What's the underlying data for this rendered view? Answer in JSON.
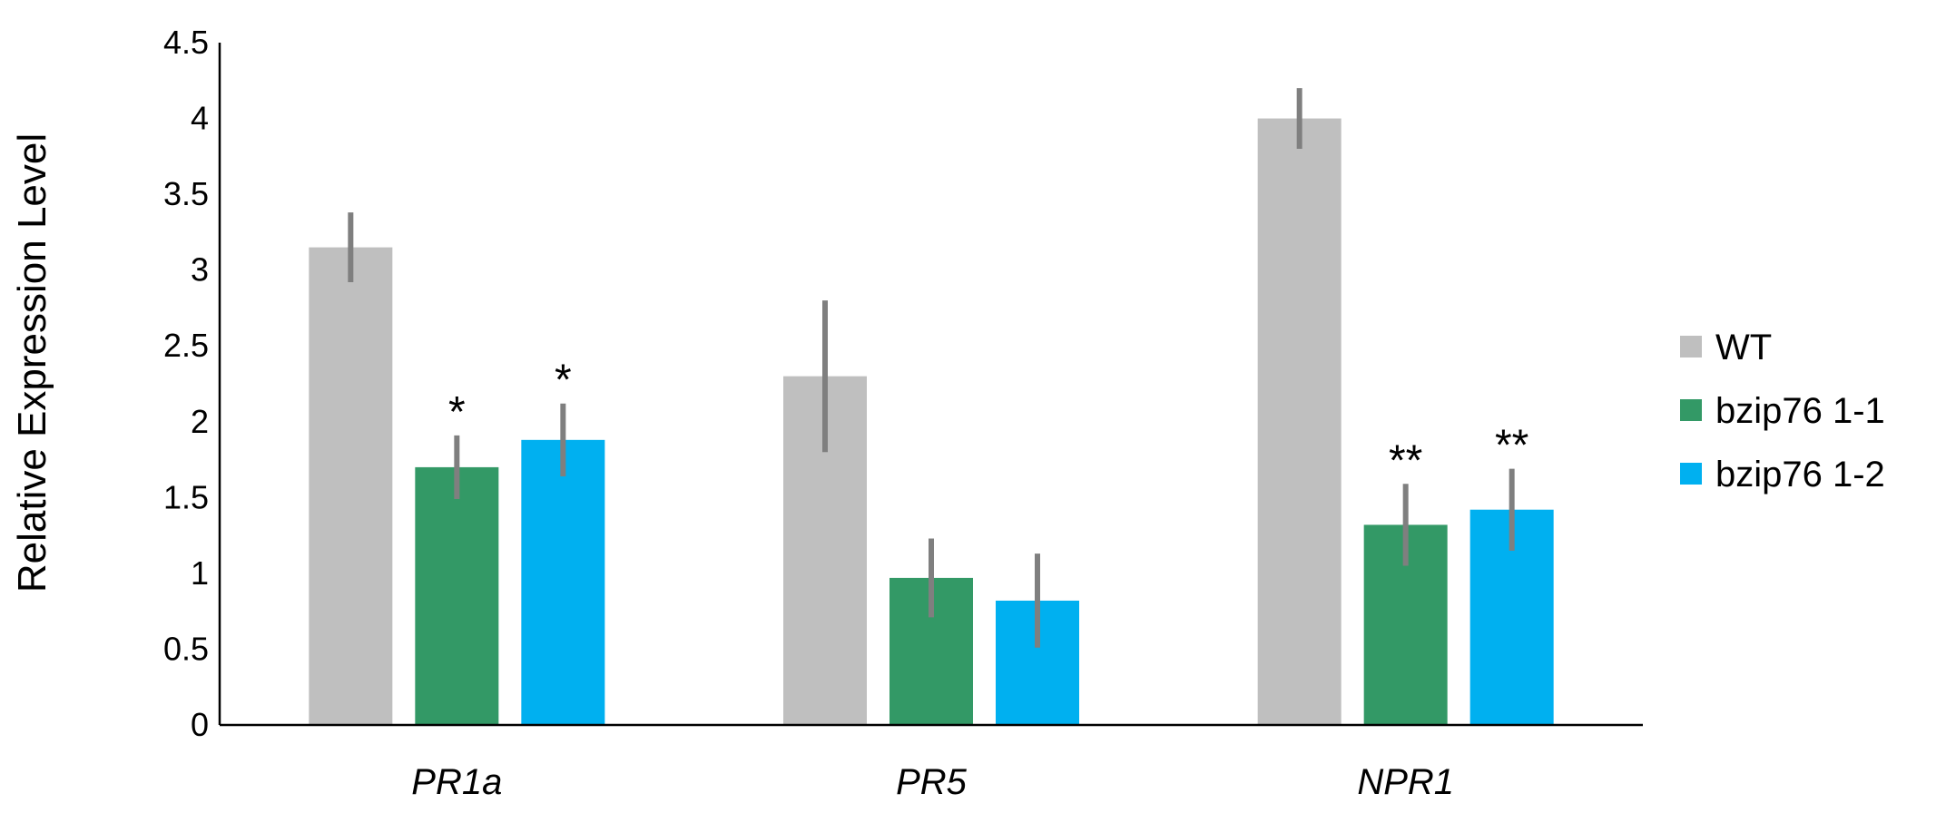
{
  "chart_data": {
    "type": "bar",
    "ylabel": "Relative Expression Level",
    "ylim": [
      0,
      4.5
    ],
    "yticks": [
      "0",
      "0.5",
      "1",
      "1.5",
      "2",
      "2.5",
      "3",
      "3.5",
      "4",
      "4.5"
    ],
    "categories": [
      "PR1a",
      "PR5",
      "NPR1"
    ],
    "legend_position": "right",
    "grid": false,
    "series": [
      {
        "name": "WT",
        "color": "#BFBFBF",
        "values": [
          3.15,
          2.3,
          4.0
        ],
        "errors": [
          0.23,
          0.5,
          0.2
        ],
        "significance": [
          "",
          "",
          ""
        ]
      },
      {
        "name": "bzip76 1-1",
        "color": "#339966",
        "values": [
          1.7,
          0.97,
          1.32
        ],
        "errors": [
          0.21,
          0.26,
          0.27
        ],
        "significance": [
          "*",
          "",
          "**"
        ]
      },
      {
        "name": "bzip76 1-2",
        "color": "#00B0F0",
        "values": [
          1.88,
          0.82,
          1.42
        ],
        "errors": [
          0.24,
          0.31,
          0.27
        ],
        "significance": [
          "*",
          "",
          "**"
        ]
      }
    ]
  }
}
